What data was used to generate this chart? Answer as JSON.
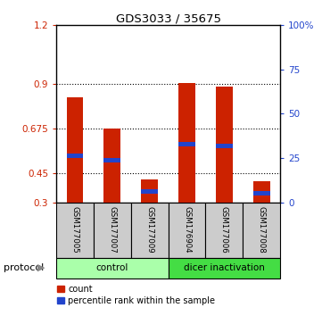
{
  "title": "GDS3033 / 35675",
  "samples": [
    "GSM177005",
    "GSM177007",
    "GSM177009",
    "GSM176904",
    "GSM177006",
    "GSM177008"
  ],
  "groups": [
    {
      "name": "control",
      "color": "#aaffaa"
    },
    {
      "name": "dicer inactivation",
      "color": "#44dd44"
    }
  ],
  "red_values": [
    0.835,
    0.675,
    0.415,
    0.905,
    0.888,
    0.405
  ],
  "blue_values": [
    0.535,
    0.515,
    0.355,
    0.595,
    0.585,
    0.345
  ],
  "ylim": [
    0.3,
    1.2
  ],
  "yticks_left": [
    0.3,
    0.45,
    0.675,
    0.9,
    1.2
  ],
  "yticks_right_labels": [
    "0",
    "25",
    "50",
    "75",
    "100%"
  ],
  "red_color": "#cc2200",
  "blue_color": "#2244cc",
  "bar_width": 0.45,
  "protocol_label": "protocol",
  "legend_count": "count",
  "legend_pct": "percentile rank within the sample",
  "sample_bg": "#cccccc"
}
